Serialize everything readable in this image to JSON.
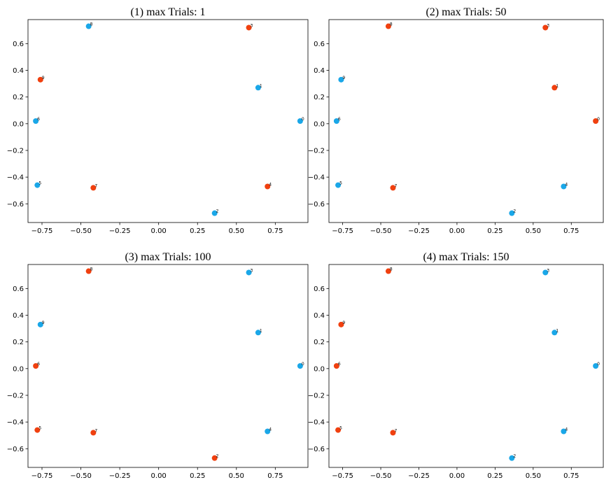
{
  "chart_data": [
    {
      "type": "scatter",
      "title": "(1) max Trials: 1",
      "xlabel": "",
      "ylabel": "",
      "xlim": [
        -0.84,
        0.96
      ],
      "ylim": [
        -0.74,
        0.78
      ],
      "xticks": [
        "−0.75",
        "−0.50",
        "−0.25",
        "0.00",
        "0.25",
        "0.50",
        "0.75"
      ],
      "yticks": [
        "−0.6",
        "−0.4",
        "−0.2",
        "0.0",
        "0.2",
        "0.4",
        "0.6"
      ],
      "grid": false,
      "points": [
        {
          "label": "0",
          "x": 0.91,
          "y": 0.02,
          "color": "#1aa7e8"
        },
        {
          "label": "1",
          "x": 0.64,
          "y": 0.27,
          "color": "#1aa7e8"
        },
        {
          "label": "2",
          "x": 0.36,
          "y": -0.67,
          "color": "#1aa7e8"
        },
        {
          "label": "3",
          "x": 0.58,
          "y": 0.72,
          "color": "#f0400f"
        },
        {
          "label": "4",
          "x": 0.7,
          "y": -0.47,
          "color": "#f0400f"
        },
        {
          "label": "5",
          "x": -0.78,
          "y": -0.46,
          "color": "#1aa7e8"
        },
        {
          "label": "6",
          "x": -0.79,
          "y": 0.02,
          "color": "#1aa7e8"
        },
        {
          "label": "7",
          "x": -0.42,
          "y": -0.48,
          "color": "#f0400f"
        },
        {
          "label": "8",
          "x": -0.45,
          "y": 0.73,
          "color": "#1aa7e8"
        },
        {
          "label": "9",
          "x": -0.76,
          "y": 0.33,
          "color": "#f0400f"
        }
      ]
    },
    {
      "type": "scatter",
      "title": "(2) max Trials: 50",
      "xlabel": "",
      "ylabel": "",
      "xlim": [
        -0.84,
        0.96
      ],
      "ylim": [
        -0.74,
        0.78
      ],
      "xticks": [
        "−0.75",
        "−0.50",
        "−0.25",
        "0.00",
        "0.25",
        "0.50",
        "0.75"
      ],
      "yticks": [
        "−0.6",
        "−0.4",
        "−0.2",
        "0.0",
        "0.2",
        "0.4",
        "0.6"
      ],
      "grid": false,
      "points": [
        {
          "label": "0",
          "x": 0.91,
          "y": 0.02,
          "color": "#f0400f"
        },
        {
          "label": "1",
          "x": 0.64,
          "y": 0.27,
          "color": "#f0400f"
        },
        {
          "label": "2",
          "x": 0.36,
          "y": -0.67,
          "color": "#1aa7e8"
        },
        {
          "label": "3",
          "x": 0.58,
          "y": 0.72,
          "color": "#f0400f"
        },
        {
          "label": "4",
          "x": 0.7,
          "y": -0.47,
          "color": "#1aa7e8"
        },
        {
          "label": "5",
          "x": -0.78,
          "y": -0.46,
          "color": "#1aa7e8"
        },
        {
          "label": "6",
          "x": -0.79,
          "y": 0.02,
          "color": "#1aa7e8"
        },
        {
          "label": "7",
          "x": -0.42,
          "y": -0.48,
          "color": "#f0400f"
        },
        {
          "label": "8",
          "x": -0.45,
          "y": 0.73,
          "color": "#f0400f"
        },
        {
          "label": "9",
          "x": -0.76,
          "y": 0.33,
          "color": "#1aa7e8"
        }
      ]
    },
    {
      "type": "scatter",
      "title": "(3) max Trials: 100",
      "xlabel": "",
      "ylabel": "",
      "xlim": [
        -0.84,
        0.96
      ],
      "ylim": [
        -0.74,
        0.78
      ],
      "xticks": [
        "−0.75",
        "−0.50",
        "−0.25",
        "0.00",
        "0.25",
        "0.50",
        "0.75"
      ],
      "yticks": [
        "−0.6",
        "−0.4",
        "−0.2",
        "0.0",
        "0.2",
        "0.4",
        "0.6"
      ],
      "grid": false,
      "points": [
        {
          "label": "0",
          "x": 0.91,
          "y": 0.02,
          "color": "#1aa7e8"
        },
        {
          "label": "1",
          "x": 0.64,
          "y": 0.27,
          "color": "#1aa7e8"
        },
        {
          "label": "2",
          "x": 0.36,
          "y": -0.67,
          "color": "#f0400f"
        },
        {
          "label": "3",
          "x": 0.58,
          "y": 0.72,
          "color": "#1aa7e8"
        },
        {
          "label": "4",
          "x": 0.7,
          "y": -0.47,
          "color": "#1aa7e8"
        },
        {
          "label": "5",
          "x": -0.78,
          "y": -0.46,
          "color": "#f0400f"
        },
        {
          "label": "6",
          "x": -0.79,
          "y": 0.02,
          "color": "#f0400f"
        },
        {
          "label": "7",
          "x": -0.42,
          "y": -0.48,
          "color": "#f0400f"
        },
        {
          "label": "8",
          "x": -0.45,
          "y": 0.73,
          "color": "#f0400f"
        },
        {
          "label": "9",
          "x": -0.76,
          "y": 0.33,
          "color": "#1aa7e8"
        }
      ]
    },
    {
      "type": "scatter",
      "title": "(4) max Trials: 150",
      "xlabel": "",
      "ylabel": "",
      "xlim": [
        -0.84,
        0.96
      ],
      "ylim": [
        -0.74,
        0.78
      ],
      "xticks": [
        "−0.75",
        "−0.50",
        "−0.25",
        "0.00",
        "0.25",
        "0.50",
        "0.75"
      ],
      "yticks": [
        "−0.6",
        "−0.4",
        "−0.2",
        "0.0",
        "0.2",
        "0.4",
        "0.6"
      ],
      "grid": false,
      "points": [
        {
          "label": "0",
          "x": 0.91,
          "y": 0.02,
          "color": "#1aa7e8"
        },
        {
          "label": "1",
          "x": 0.64,
          "y": 0.27,
          "color": "#1aa7e8"
        },
        {
          "label": "2",
          "x": 0.36,
          "y": -0.67,
          "color": "#1aa7e8"
        },
        {
          "label": "3",
          "x": 0.58,
          "y": 0.72,
          "color": "#1aa7e8"
        },
        {
          "label": "4",
          "x": 0.7,
          "y": -0.47,
          "color": "#1aa7e8"
        },
        {
          "label": "5",
          "x": -0.78,
          "y": -0.46,
          "color": "#f0400f"
        },
        {
          "label": "6",
          "x": -0.79,
          "y": 0.02,
          "color": "#f0400f"
        },
        {
          "label": "7",
          "x": -0.42,
          "y": -0.48,
          "color": "#f0400f"
        },
        {
          "label": "8",
          "x": -0.45,
          "y": 0.73,
          "color": "#f0400f"
        },
        {
          "label": "9",
          "x": -0.76,
          "y": 0.33,
          "color": "#f0400f"
        }
      ]
    }
  ]
}
